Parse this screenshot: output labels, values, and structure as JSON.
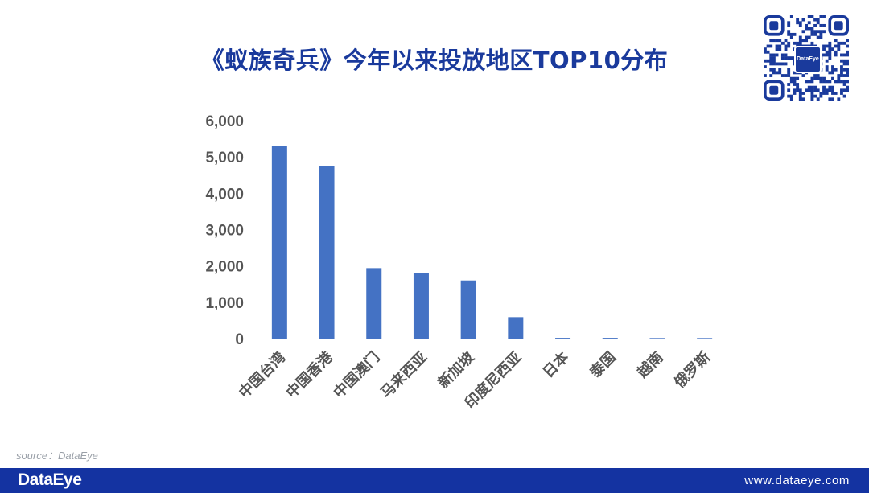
{
  "header": {
    "title": "《蚁族奇兵》今年以来投放地区TOP10分布"
  },
  "qr": {
    "center_label": "DataEye",
    "accent": "#1a3a9c"
  },
  "chart_data": {
    "type": "bar",
    "title": "",
    "xlabel": "",
    "ylabel": "",
    "categories": [
      "中国台湾",
      "中国香港",
      "中国澳门",
      "马来西亚",
      "新加坡",
      "印度尼西亚",
      "日本",
      "泰国",
      "越南",
      "俄罗斯"
    ],
    "values": [
      5300,
      4750,
      1940,
      1810,
      1600,
      590,
      20,
      20,
      15,
      15
    ],
    "ylim": [
      0,
      6000
    ],
    "yticks": [
      0,
      1000,
      2000,
      3000,
      4000,
      5000,
      6000
    ],
    "ytick_labels": [
      "0",
      "1,000",
      "2,000",
      "3,000",
      "4,000",
      "5,000",
      "6,000"
    ],
    "bar_color": "#4472c4",
    "grid": false,
    "legend": "none"
  },
  "source": {
    "text": "source：DataEye"
  },
  "footer": {
    "brand": "DataEye",
    "website": "www.dataeye.com",
    "background": "#1433a1"
  }
}
